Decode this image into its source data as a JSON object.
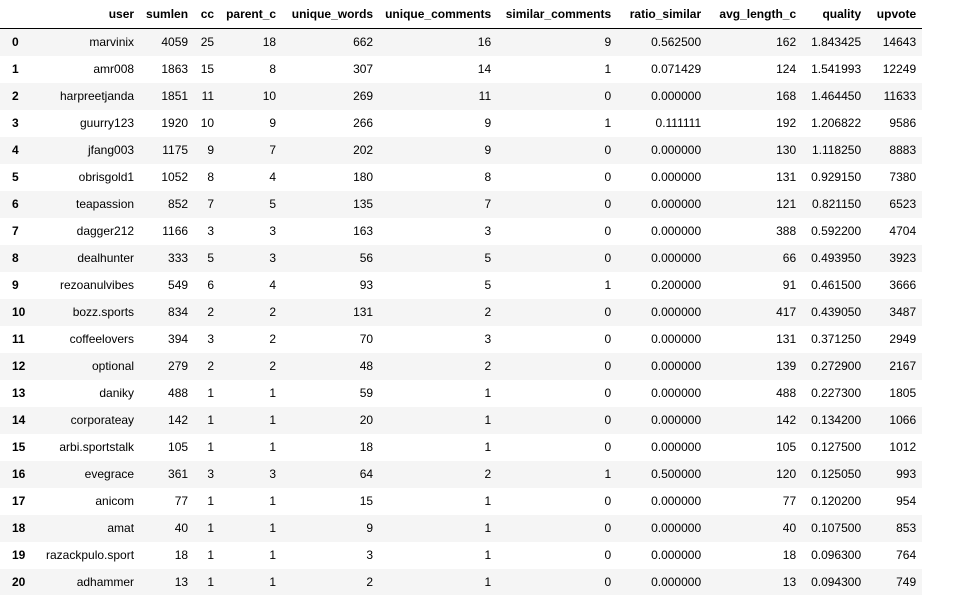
{
  "table": {
    "columns": [
      "",
      "user",
      "sumlen",
      "cc",
      "parent_c",
      "unique_words",
      "unique_comments",
      "similar_comments",
      "ratio_similar",
      "avg_length_c",
      "quality",
      "upvote"
    ],
    "rows": [
      [
        "0",
        "marvinix",
        "4059",
        "25",
        "18",
        "662",
        "16",
        "9",
        "0.562500",
        "162",
        "1.843425",
        "14643"
      ],
      [
        "1",
        "amr008",
        "1863",
        "15",
        "8",
        "307",
        "14",
        "1",
        "0.071429",
        "124",
        "1.541993",
        "12249"
      ],
      [
        "2",
        "harpreetjanda",
        "1851",
        "11",
        "10",
        "269",
        "11",
        "0",
        "0.000000",
        "168",
        "1.464450",
        "11633"
      ],
      [
        "3",
        "guurry123",
        "1920",
        "10",
        "9",
        "266",
        "9",
        "1",
        "0.111111",
        "192",
        "1.206822",
        "9586"
      ],
      [
        "4",
        "jfang003",
        "1175",
        "9",
        "7",
        "202",
        "9",
        "0",
        "0.000000",
        "130",
        "1.118250",
        "8883"
      ],
      [
        "5",
        "obrisgold1",
        "1052",
        "8",
        "4",
        "180",
        "8",
        "0",
        "0.000000",
        "131",
        "0.929150",
        "7380"
      ],
      [
        "6",
        "teapassion",
        "852",
        "7",
        "5",
        "135",
        "7",
        "0",
        "0.000000",
        "121",
        "0.821150",
        "6523"
      ],
      [
        "7",
        "dagger212",
        "1166",
        "3",
        "3",
        "163",
        "3",
        "0",
        "0.000000",
        "388",
        "0.592200",
        "4704"
      ],
      [
        "8",
        "dealhunter",
        "333",
        "5",
        "3",
        "56",
        "5",
        "0",
        "0.000000",
        "66",
        "0.493950",
        "3923"
      ],
      [
        "9",
        "rezoanulvibes",
        "549",
        "6",
        "4",
        "93",
        "5",
        "1",
        "0.200000",
        "91",
        "0.461500",
        "3666"
      ],
      [
        "10",
        "bozz.sports",
        "834",
        "2",
        "2",
        "131",
        "2",
        "0",
        "0.000000",
        "417",
        "0.439050",
        "3487"
      ],
      [
        "11",
        "coffeelovers",
        "394",
        "3",
        "2",
        "70",
        "3",
        "0",
        "0.000000",
        "131",
        "0.371250",
        "2949"
      ],
      [
        "12",
        "optional",
        "279",
        "2",
        "2",
        "48",
        "2",
        "0",
        "0.000000",
        "139",
        "0.272900",
        "2167"
      ],
      [
        "13",
        "daniky",
        "488",
        "1",
        "1",
        "59",
        "1",
        "0",
        "0.000000",
        "488",
        "0.227300",
        "1805"
      ],
      [
        "14",
        "corporateay",
        "142",
        "1",
        "1",
        "20",
        "1",
        "0",
        "0.000000",
        "142",
        "0.134200",
        "1066"
      ],
      [
        "15",
        "arbi.sportstalk",
        "105",
        "1",
        "1",
        "18",
        "1",
        "0",
        "0.000000",
        "105",
        "0.127500",
        "1012"
      ],
      [
        "16",
        "evegrace",
        "361",
        "3",
        "3",
        "64",
        "2",
        "1",
        "0.500000",
        "120",
        "0.125050",
        "993"
      ],
      [
        "17",
        "anicom",
        "77",
        "1",
        "1",
        "15",
        "1",
        "0",
        "0.000000",
        "77",
        "0.120200",
        "954"
      ],
      [
        "18",
        "amat",
        "40",
        "1",
        "1",
        "9",
        "1",
        "0",
        "0.000000",
        "40",
        "0.107500",
        "853"
      ],
      [
        "19",
        "razackpulo.sport",
        "18",
        "1",
        "1",
        "3",
        "1",
        "0",
        "0.000000",
        "18",
        "0.096300",
        "764"
      ],
      [
        "20",
        "adhammer",
        "13",
        "1",
        "1",
        "2",
        "1",
        "0",
        "0.000000",
        "13",
        "0.094300",
        "749"
      ]
    ]
  }
}
